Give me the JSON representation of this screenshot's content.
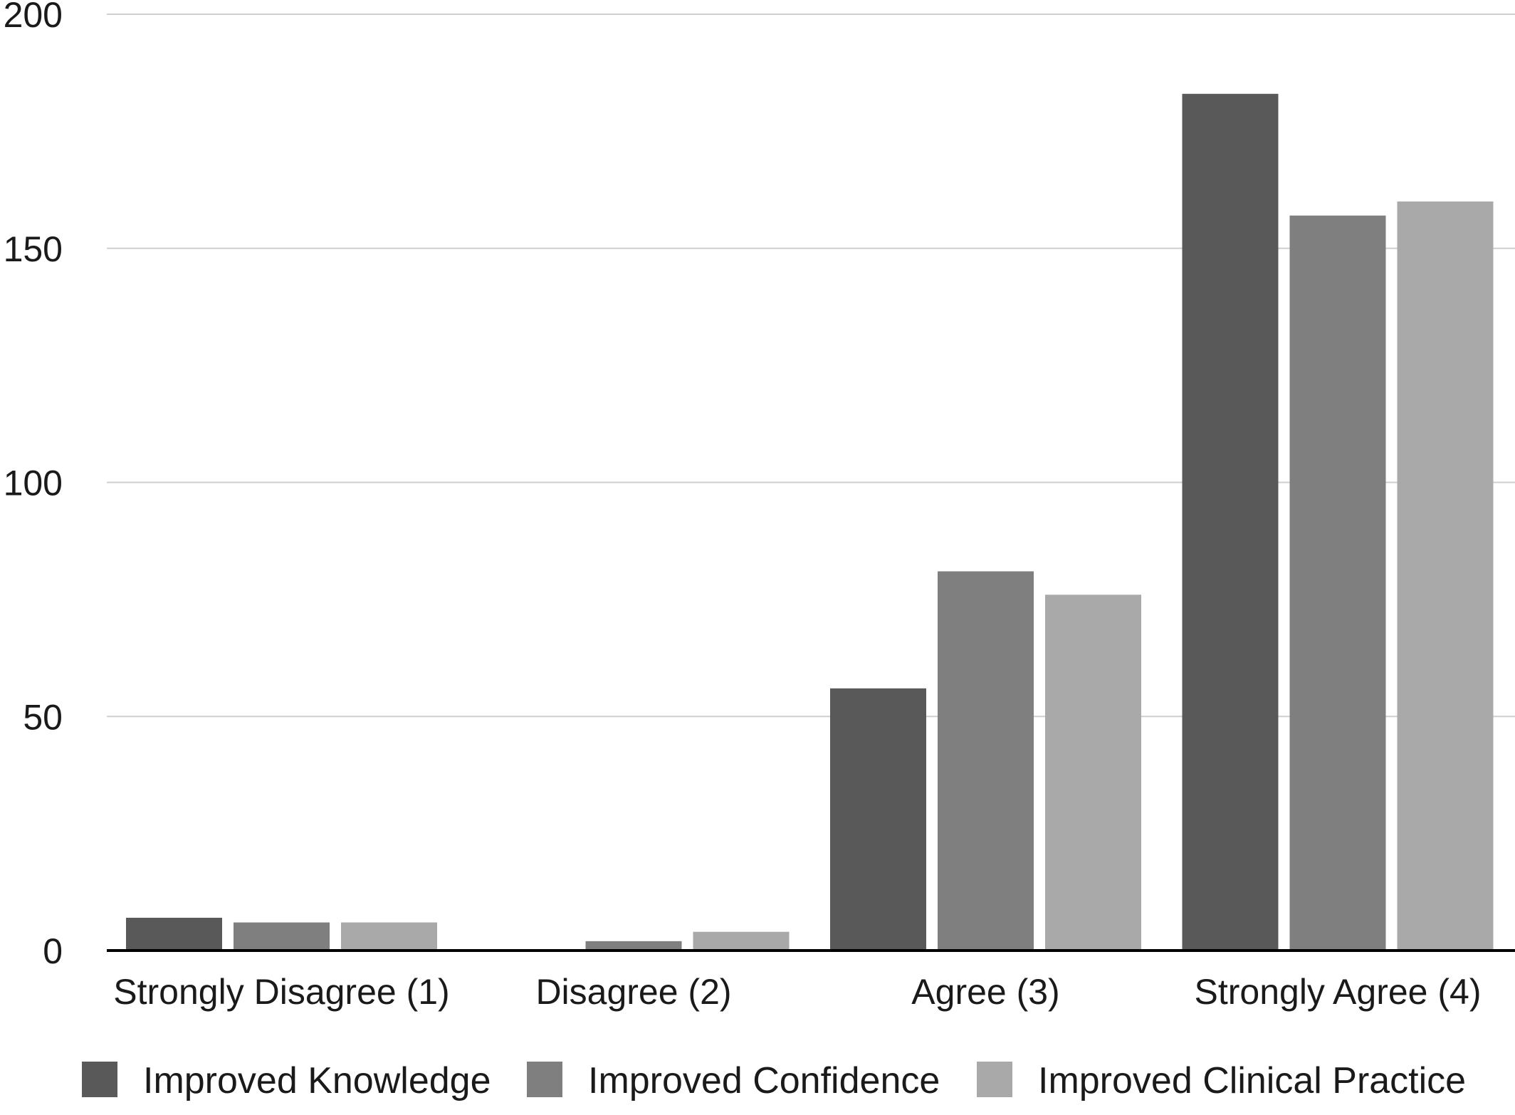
{
  "chart_data": {
    "type": "bar",
    "title": "",
    "xlabel": "",
    "ylabel": "",
    "categories": [
      "Strongly Disagree (1)",
      "Disagree (2)",
      "Agree (3)",
      "Strongly Agree (4)"
    ],
    "series": [
      {
        "name": "Improved Knowledge",
        "color": "#595959",
        "values": [
          7,
          0,
          56,
          183
        ]
      },
      {
        "name": "Improved Confidence",
        "color": "#7f7f7f",
        "values": [
          6,
          2,
          81,
          157
        ]
      },
      {
        "name": "Improved Clinical Practice",
        "color": "#a9a9a9",
        "values": [
          6,
          4,
          76,
          160
        ]
      }
    ],
    "ylim": [
      0,
      200
    ],
    "yticks": [
      0,
      50,
      100,
      150,
      200
    ],
    "grid": true,
    "legend_position": "bottom"
  }
}
